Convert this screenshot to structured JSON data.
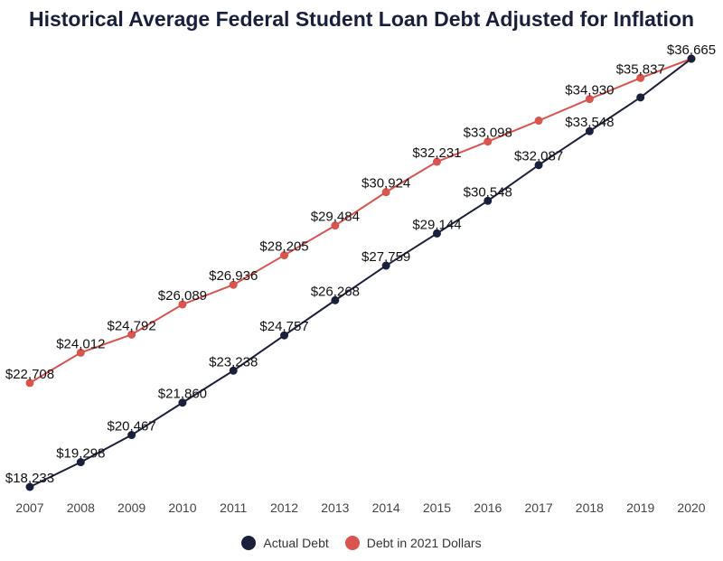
{
  "chart_data": {
    "type": "line",
    "title": "Historical Average Federal Student Loan Debt Adjusted for Inflation",
    "categories": [
      "2007",
      "2008",
      "2009",
      "2010",
      "2011",
      "2012",
      "2013",
      "2014",
      "2015",
      "2016",
      "2017",
      "2018",
      "2019",
      "2020"
    ],
    "ylim": [
      18000,
      37000
    ],
    "grid": false,
    "legend_position": "bottom",
    "series": [
      {
        "name": "Actual Debt",
        "color": "#1a1f3c",
        "values": [
          18233,
          19298,
          20467,
          21860,
          23238,
          24757,
          26268,
          27759,
          29144,
          30548,
          32087,
          33548,
          35000,
          36665
        ],
        "labels": [
          "$18,233",
          "$19,298",
          "$20,467",
          "$21,860",
          "$23,238",
          "$24,757",
          "$26,268",
          "$27,759",
          "$29,144",
          "$30,548",
          "$32,087",
          "$33,548",
          "",
          ""
        ]
      },
      {
        "name": "Debt in 2021 Dollars",
        "color": "#d9534f",
        "values": [
          22708,
          24012,
          24792,
          26089,
          26936,
          28205,
          29484,
          30924,
          32231,
          33098,
          34000,
          34930,
          35837,
          36665
        ],
        "labels": [
          "$22,708",
          "$24,012",
          "$24,792",
          "$26,089",
          "$26,936",
          "$28,205",
          "$29,484",
          "$30,924",
          "$32,231",
          "$33,098",
          "",
          "$34,930",
          "$35,837",
          "$36,665"
        ]
      }
    ]
  }
}
